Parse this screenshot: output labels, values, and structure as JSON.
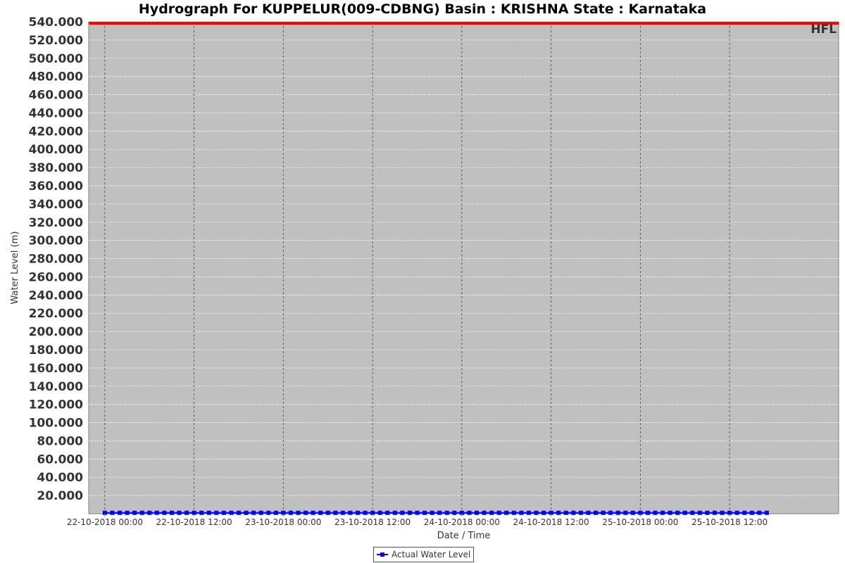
{
  "chart_data": {
    "type": "line",
    "title": "Hydrograph For KUPPELUR(009-CDBNG) Basin : KRISHNA State : Karnataka",
    "xlabel": "Date / Time",
    "ylabel": "Water Level (m)",
    "ylim": [
      0,
      540
    ],
    "yticks": [
      "20.000",
      "40.000",
      "60.000",
      "80.000",
      "100.000",
      "120.000",
      "140.000",
      "160.000",
      "180.000",
      "200.000",
      "220.000",
      "240.000",
      "260.000",
      "280.000",
      "300.000",
      "320.000",
      "340.000",
      "360.000",
      "380.000",
      "400.000",
      "420.000",
      "440.000",
      "460.000",
      "480.000",
      "500.000",
      "520.000",
      "540.000"
    ],
    "xticks": [
      "22-10-2018 00:00",
      "22-10-2018 12:00",
      "23-10-2018 00:00",
      "23-10-2018 12:00",
      "24-10-2018 00:00",
      "24-10-2018 12:00",
      "25-10-2018 00:00",
      "25-10-2018 12:00"
    ],
    "xrange": [
      "21-10-2018 21:50",
      "26-10-2018 02:40"
    ],
    "x_start": "22-10-2018 00:00",
    "x_step_hours": 1,
    "series": [
      {
        "name": "Actual Water Level",
        "color": "#0000ff",
        "marker": "square",
        "values": [
          1,
          1,
          1,
          1,
          1,
          1,
          1,
          1,
          1,
          1,
          1,
          1,
          1,
          1,
          1,
          1,
          1,
          1,
          1,
          1,
          1,
          1,
          1,
          1,
          1,
          1,
          1,
          1,
          1,
          1,
          1,
          1,
          1,
          1,
          1,
          1,
          1,
          1,
          1,
          1,
          1,
          1,
          1,
          1,
          1,
          1,
          1,
          1,
          1,
          1,
          1,
          1,
          1,
          1,
          1,
          1,
          1,
          1,
          1,
          1,
          1,
          1,
          1,
          1,
          1,
          1,
          1,
          1,
          1,
          1,
          1,
          1,
          1,
          1,
          1,
          1,
          1,
          1,
          1,
          1,
          1,
          1,
          1,
          1,
          1,
          1,
          1,
          1,
          1,
          1
        ]
      }
    ],
    "reference_lines": [
      {
        "label": "HFL",
        "value": 540,
        "color": "#ff0000"
      }
    ],
    "grid": true,
    "legend": "bottom",
    "plot_background": "#c0c0c0"
  }
}
